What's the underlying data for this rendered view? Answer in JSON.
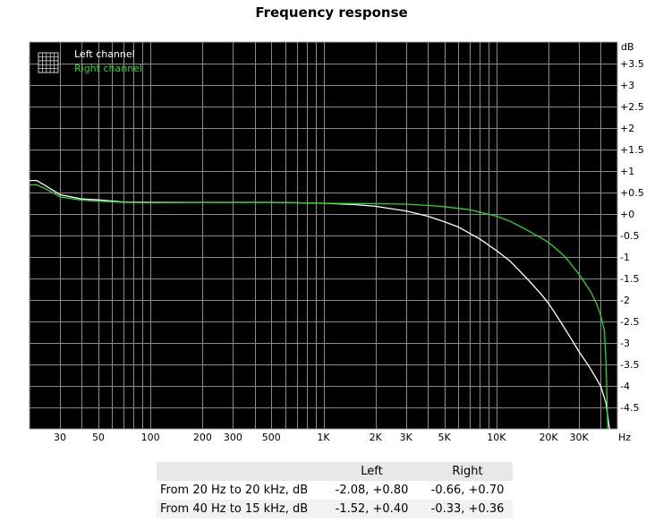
{
  "chart_data": {
    "type": "line",
    "title": "Frequency response",
    "x_unit": "Hz",
    "y_unit": "dB",
    "x_scale": "log",
    "xlim": [
      20,
      50000
    ],
    "ylim": [
      -5,
      4
    ],
    "grid": true,
    "legend_position": "top-left",
    "x_ticks": [
      {
        "value": 30,
        "label": "30"
      },
      {
        "value": 50,
        "label": "50"
      },
      {
        "value": 100,
        "label": "100"
      },
      {
        "value": 200,
        "label": "200"
      },
      {
        "value": 300,
        "label": "300"
      },
      {
        "value": 500,
        "label": "500"
      },
      {
        "value": 1000,
        "label": "1K"
      },
      {
        "value": 2000,
        "label": "2K"
      },
      {
        "value": 3000,
        "label": "3K"
      },
      {
        "value": 5000,
        "label": "5K"
      },
      {
        "value": 10000,
        "label": "10K"
      },
      {
        "value": 20000,
        "label": "20K"
      },
      {
        "value": 30000,
        "label": "30K"
      }
    ],
    "y_ticks": [
      {
        "value": 3.5,
        "label": "+3.5"
      },
      {
        "value": 3,
        "label": "+3"
      },
      {
        "value": 2.5,
        "label": "+2.5"
      },
      {
        "value": 2,
        "label": "+2"
      },
      {
        "value": 1.5,
        "label": "+1.5"
      },
      {
        "value": 1,
        "label": "+1"
      },
      {
        "value": 0.5,
        "label": "+0.5"
      },
      {
        "value": 0,
        "label": "+0"
      },
      {
        "value": -0.5,
        "label": "-0.5"
      },
      {
        "value": -1,
        "label": "-1"
      },
      {
        "value": -1.5,
        "label": "-1.5"
      },
      {
        "value": -2,
        "label": "-2"
      },
      {
        "value": -2.5,
        "label": "-2.5"
      },
      {
        "value": -3,
        "label": "-3"
      },
      {
        "value": -3.5,
        "label": "-3.5"
      },
      {
        "value": -4,
        "label": "-4"
      },
      {
        "value": -4.5,
        "label": "-4.5"
      }
    ],
    "series": [
      {
        "name": "Left channel",
        "color": "#ffffff",
        "x": [
          20,
          22,
          25,
          30,
          40,
          50,
          70,
          100,
          200,
          500,
          1000,
          1500,
          2000,
          3000,
          4000,
          5000,
          6000,
          7000,
          8000,
          10000,
          12000,
          15000,
          18000,
          20000,
          23000,
          27000,
          30000,
          35000,
          40000,
          43000,
          45000
        ],
        "y": [
          0.78,
          0.78,
          0.65,
          0.45,
          0.35,
          0.33,
          0.28,
          0.27,
          0.27,
          0.27,
          0.25,
          0.22,
          0.18,
          0.07,
          -0.05,
          -0.18,
          -0.3,
          -0.45,
          -0.58,
          -0.85,
          -1.1,
          -1.5,
          -1.85,
          -2.08,
          -2.45,
          -2.9,
          -3.2,
          -3.6,
          -4.0,
          -4.4,
          -5.0
        ]
      },
      {
        "name": "Right channel",
        "color": "#22dd22",
        "x": [
          20,
          22,
          25,
          30,
          40,
          50,
          70,
          100,
          200,
          500,
          1000,
          2000,
          3000,
          4000,
          5000,
          7000,
          10000,
          12000,
          15000,
          18000,
          20000,
          22000,
          25000,
          30000,
          35000,
          38000,
          40000,
          42000,
          43000,
          44000
        ],
        "y": [
          0.68,
          0.68,
          0.58,
          0.4,
          0.32,
          0.3,
          0.27,
          0.26,
          0.27,
          0.27,
          0.25,
          0.24,
          0.23,
          0.2,
          0.17,
          0.1,
          -0.05,
          -0.17,
          -0.37,
          -0.55,
          -0.66,
          -0.8,
          -1.0,
          -1.4,
          -1.8,
          -2.1,
          -2.35,
          -2.7,
          -3.4,
          -5.0
        ]
      }
    ]
  },
  "summary_table": {
    "headers": [
      "",
      "Left",
      "Right"
    ],
    "rows": [
      {
        "label": "From 20 Hz to 20 kHz, dB",
        "left": "-2.08, +0.80",
        "right": "-0.66, +0.70"
      },
      {
        "label": "From 40 Hz to 15 kHz, dB",
        "left": "-1.52, +0.40",
        "right": "-0.33, +0.36"
      }
    ]
  }
}
